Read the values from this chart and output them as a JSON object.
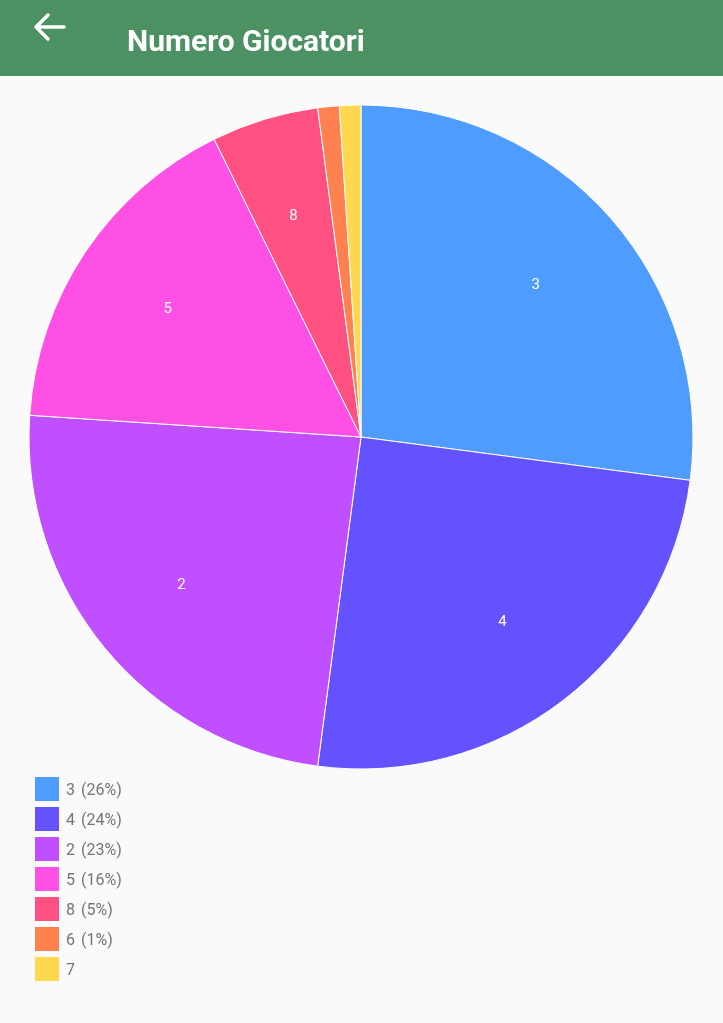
{
  "chart_data": {
    "type": "pie",
    "title": "Numero Giocatori",
    "categories": [
      "3",
      "4",
      "2",
      "5",
      "8",
      "6",
      "7"
    ],
    "values": [
      26,
      24,
      23,
      16,
      5,
      1,
      1
    ],
    "value_labels": [
      "(26%)",
      "(24%)",
      "(23%)",
      "(16%)",
      "(5%)",
      "(1%)",
      null
    ],
    "colors": [
      "#4f9cff",
      "#6452ff",
      "#c050ff",
      "#ff50e6",
      "#ff5082",
      "#ff8150",
      "#ffd84f"
    ],
    "legend": "bottom left"
  }
}
